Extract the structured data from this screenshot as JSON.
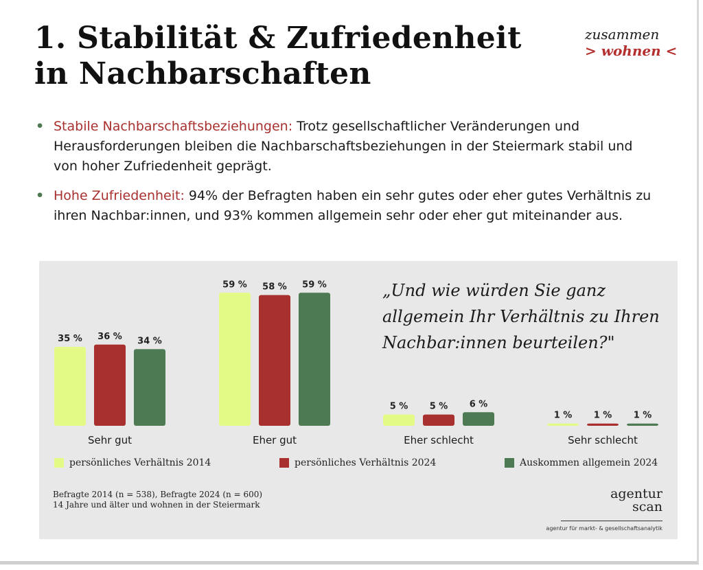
{
  "title": {
    "line1": "1. Stabilität & Zufriedenheit",
    "line2": "in Nachbarschaften"
  },
  "logo": {
    "line1": "zusammen",
    "line2": "> wohnen <"
  },
  "bullets": [
    {
      "heading": "Stabile Nachbarschaftsbeziehungen:",
      "text": "Trotz gesellschaftlicher Veränderungen und Herausforderungen bleiben die Nachbarschaftsbeziehungen in der Steiermark stabil und von hoher Zufriedenheit geprägt."
    },
    {
      "heading": "Hohe Zufriedenheit:",
      "text": "94% der Befragten haben ein sehr gutes oder eher gutes Verhältnis zu ihren Nachbar:innen, und 93% kommen allgemein sehr oder eher gut miteinander aus."
    }
  ],
  "chart_data": {
    "type": "bar",
    "title": "„Und wie würden Sie ganz allgemein Ihr Verhältnis zu Ihren Nachbar:innen beurteilen?\"",
    "categories": [
      "Sehr gut",
      "Eher gut",
      "Eher schlecht",
      "Sehr schlecht"
    ],
    "series": [
      {
        "name": "persönliches Verhältnis 2014",
        "color": "#e3fb86",
        "values": [
          35,
          59,
          5,
          1
        ]
      },
      {
        "name": "persönliches Verhältnis 2024",
        "color": "#a8302e",
        "values": [
          36,
          58,
          5,
          1
        ]
      },
      {
        "name": "Auskommen allgemein 2024",
        "color": "#4d7a52",
        "values": [
          34,
          59,
          6,
          1
        ]
      }
    ],
    "value_suffix": " %",
    "ylim": [
      0,
      60
    ],
    "legend": "bottom",
    "grid": false
  },
  "footer": {
    "line1": "Befragte 2014 (n = 538), Befragte 2024 (n = 600)",
    "line2": "14 Jahre und älter und wohnen in der Steiermark"
  },
  "brand": {
    "line1": "agentur",
    "line2": "scan",
    "tagline": "agentur für markt- & gesellschaftsanalytik"
  }
}
